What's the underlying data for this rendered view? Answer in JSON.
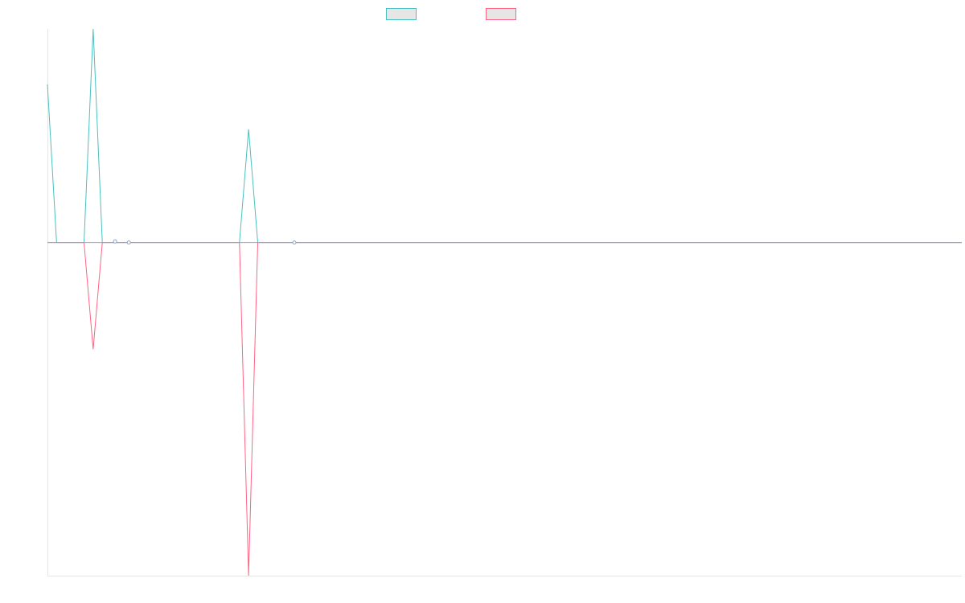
{
  "chart_data": {
    "type": "line",
    "title": "",
    "xlabel": "",
    "ylabel": "",
    "grid": false,
    "legend_position": "top-center",
    "x": [
      0,
      1,
      2,
      3,
      4,
      5,
      6,
      7,
      8,
      9,
      10,
      11,
      12,
      13,
      14,
      15,
      16,
      17,
      18,
      19,
      20,
      21,
      22,
      23,
      24,
      25,
      26,
      27,
      28,
      29,
      30,
      31,
      32,
      33,
      34,
      35,
      36,
      37,
      38,
      39,
      40,
      41,
      42,
      43,
      44,
      45,
      46,
      47,
      48,
      49,
      50,
      51,
      52,
      53,
      54,
      55,
      56,
      57,
      58,
      59,
      60,
      61,
      62,
      63,
      64,
      65,
      66,
      67,
      68,
      69,
      70,
      71,
      72,
      73,
      74,
      75,
      76,
      77,
      78,
      79,
      80,
      81,
      82,
      83,
      84,
      85,
      86,
      87,
      88,
      89,
      90,
      91,
      92,
      93,
      94,
      95,
      96,
      97,
      98,
      99,
      100
    ],
    "xlim": [
      0,
      100
    ],
    "ylim": [
      -1.56,
      1.0
    ],
    "series": [
      {
        "name": "",
        "color": "#4bc0c0",
        "values": [
          0.74,
          0,
          0,
          0,
          0,
          1.0,
          0,
          0,
          0,
          0,
          0,
          0,
          0,
          0,
          0,
          0,
          0,
          0,
          0,
          0,
          0,
          0,
          0.53,
          0,
          0,
          0,
          0,
          0,
          0,
          0,
          0,
          0,
          0,
          0,
          0,
          0,
          0,
          0,
          0,
          0,
          0,
          0,
          0,
          0,
          0,
          0,
          0,
          0,
          0,
          0,
          0,
          0,
          0,
          0,
          0,
          0,
          0,
          0,
          0,
          0,
          0,
          0,
          0,
          0,
          0,
          0,
          0,
          0,
          0,
          0,
          0,
          0,
          0,
          0,
          0,
          0,
          0,
          0,
          0,
          0,
          0,
          0,
          0,
          0,
          0,
          0,
          0,
          0,
          0,
          0,
          0,
          0,
          0,
          0,
          0,
          0,
          0,
          0,
          0,
          0,
          0
        ]
      },
      {
        "name": "",
        "color": "#ff6384",
        "values": [
          0,
          0,
          0,
          0,
          0,
          -0.5,
          0,
          0,
          0,
          0,
          0,
          0,
          0,
          0,
          0,
          0,
          0,
          0,
          0,
          0,
          0,
          0,
          -1.56,
          0,
          0,
          0,
          0,
          0,
          0,
          0,
          0,
          0,
          0,
          0,
          0,
          0,
          0,
          0,
          0,
          0,
          0,
          0,
          0,
          0,
          0,
          0,
          0,
          0,
          0,
          0,
          0,
          0,
          0,
          0,
          0,
          0,
          0,
          0,
          0,
          0,
          0,
          0,
          0,
          0,
          0,
          0,
          0,
          0,
          0,
          0,
          0,
          0,
          0,
          0,
          0,
          0,
          0,
          0,
          0,
          0,
          0,
          0,
          0,
          0,
          0,
          0,
          0,
          0,
          0,
          0,
          0,
          0,
          0,
          0,
          0,
          0,
          0,
          0,
          0,
          0,
          0
        ]
      }
    ],
    "markers": [
      {
        "x": 7.4,
        "y": 0.005
      },
      {
        "x": 8.9,
        "y": 0
      },
      {
        "x": 27.0,
        "y": 0
      }
    ]
  }
}
